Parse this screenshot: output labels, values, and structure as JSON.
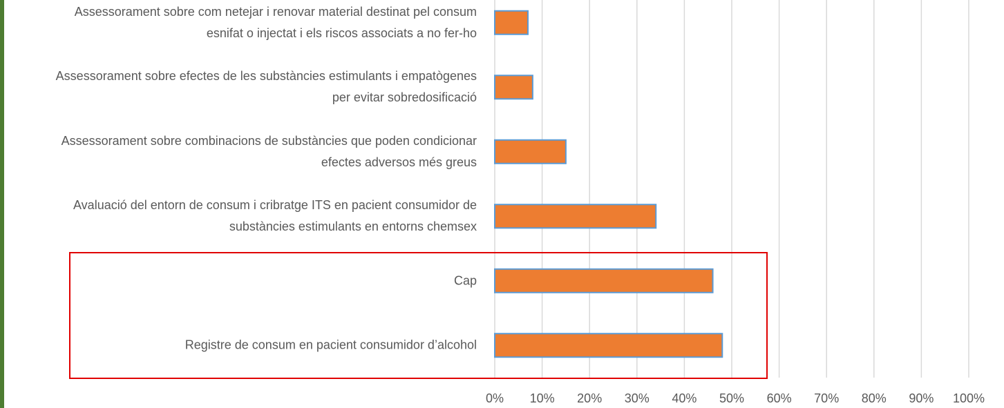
{
  "chart_data": {
    "type": "barh",
    "categories": [
      "Assessorament sobre com netejar i renovar material destinat pel consum esnifat o injectat i els riscos associats a no fer-ho",
      "Assessorament sobre efectes de les substàncies estimulants i empatògenes per evitar sobredosificació",
      "Assessorament sobre combinacions de substàncies que poden condicionar efectes adversos més greus",
      "Avaluació del entorn de consum i cribratge ITS en pacient consumidor de substàncies estimulants en entorns chemsex",
      "Cap",
      "Registre de consum en pacient consumidor d’alcohol"
    ],
    "values": [
      7,
      8,
      15,
      34,
      46,
      48
    ],
    "color": "#ed7d31",
    "xlim": [
      0,
      100
    ],
    "xticks": [
      {
        "value": 0,
        "label": "0%"
      },
      {
        "value": 10,
        "label": "10%"
      },
      {
        "value": 20,
        "label": "20%"
      },
      {
        "value": 30,
        "label": "30%"
      },
      {
        "value": 40,
        "label": "40%"
      },
      {
        "value": 50,
        "label": "50%"
      },
      {
        "value": 60,
        "label": "60%"
      },
      {
        "value": 70,
        "label": "70%"
      },
      {
        "value": 80,
        "label": "80%"
      },
      {
        "value": 90,
        "label": "90%"
      },
      {
        "value": 100,
        "label": "100%"
      }
    ],
    "grid": true
  }
}
